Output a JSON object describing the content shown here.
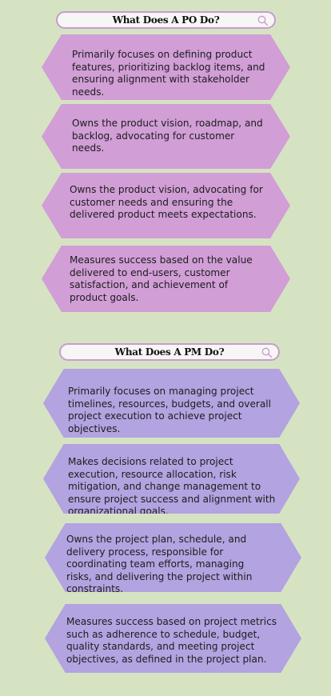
{
  "colors": {
    "background": "#d6e3c3",
    "po_hex": "#d19ed6",
    "pm_hex": "#b3a3e0",
    "search_border": "#c79bd0"
  },
  "po_section": {
    "title": "What Does A PO Do?",
    "items": [
      "Primarily focuses on defining product features, prioritizing backlog items, and ensuring alignment with stakeholder needs.",
      "Owns the product vision, roadmap, and backlog, advocating for customer needs.",
      "Owns the product vision, advocating for customer needs and ensuring the delivered product meets expectations.",
      "Measures success based on the value delivered to end-users, customer satisfaction, and achievement of product goals."
    ]
  },
  "pm_section": {
    "title": "What Does A PM Do?",
    "items": [
      "Primarily focuses on managing project timelines, resources, budgets, and overall project execution to achieve project objectives.",
      "Makes decisions related to project execution, resource allocation, risk mitigation, and change management to ensure project success and alignment with organizational goals.",
      "Owns the project plan, schedule, and delivery process, responsible for coordinating team efforts, managing risks, and delivering the project within constraints.",
      "Measures success based on project metrics such as adherence to schedule, budget, quality standards, and meeting project objectives, as defined in the project plan."
    ]
  },
  "icons": {
    "search": "search-icon"
  }
}
